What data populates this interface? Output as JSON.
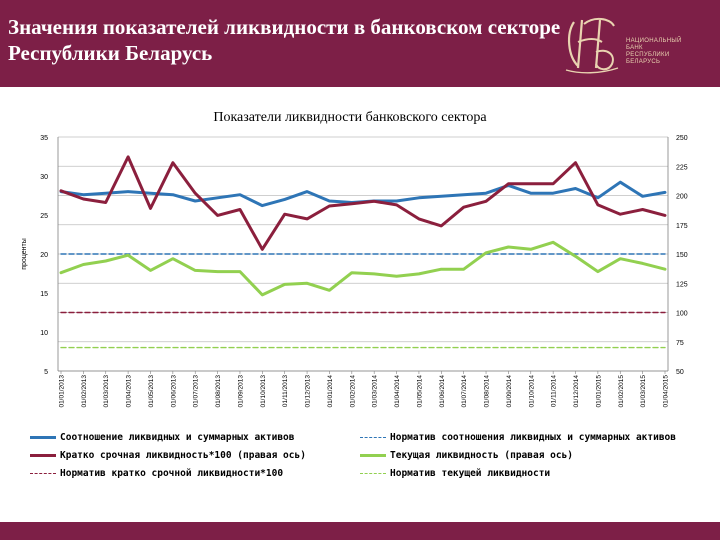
{
  "header": {
    "title": "Значения показателей ликвидности в банковском секторе Республики Беларусь",
    "logo_text": [
      "НАЦИОНАЛЬНЫЙ",
      "БАНК",
      "РЕСПУБЛИКИ",
      "БЕЛАРУСЬ"
    ],
    "background_color": "#7d1f47"
  },
  "chart_data": {
    "type": "line",
    "title": "Показатели ликвидности банковского сектора",
    "ylabel_left": "проценты",
    "y_left": {
      "min": 5,
      "max": 35,
      "ticks": [
        5,
        10,
        15,
        20,
        25,
        30,
        35
      ]
    },
    "y_right": {
      "min": 50,
      "max": 250,
      "ticks": [
        50,
        75,
        100,
        125,
        150,
        175,
        200,
        225,
        250
      ]
    },
    "grid": true,
    "legend_position": "bottom",
    "categories": [
      "01/01/2013",
      "01/02/2013",
      "01/03/2013",
      "01/04/2013",
      "01/05/2013",
      "01/06/2013",
      "01/07/2013",
      "01/08/2013",
      "01/09/2013",
      "01/10/2013",
      "01/11/2013",
      "01/12/2013",
      "01/01/2014",
      "01/02/2014",
      "01/03/2014",
      "01/04/2014",
      "01/05/2014",
      "01/06/2014",
      "01/07/2014",
      "01/08/2014",
      "01/09/2014",
      "01/10/2014",
      "01/11/2014",
      "01/12/2014",
      "01/01/2015",
      "01/02/2015",
      "01/03/2015",
      "01/04/2015"
    ],
    "series": [
      {
        "name": "Соотношение ликвидных и суммарных активов",
        "axis": "left",
        "style": "solid",
        "color": "#2e75b6",
        "values": [
          28.0,
          27.6,
          27.8,
          28.0,
          27.8,
          27.6,
          26.8,
          27.2,
          27.6,
          26.2,
          27.0,
          28.0,
          26.8,
          26.6,
          26.8,
          26.8,
          27.2,
          27.4,
          27.6,
          27.8,
          28.8,
          27.8,
          27.8,
          28.4,
          27.2,
          29.2,
          27.4,
          27.9
        ]
      },
      {
        "name": "Кратко срочная ликвидность*100  (правая ось)",
        "axis": "right",
        "style": "solid",
        "color": "#8b1f3d",
        "values": [
          204,
          197,
          194,
          233,
          189,
          228,
          202,
          183,
          188,
          154,
          184,
          180,
          191,
          193,
          195,
          192,
          180,
          174,
          190,
          195,
          210,
          210,
          210,
          228,
          192,
          184,
          188,
          183
        ]
      },
      {
        "name": "Норматив кратко срочной ликвидности*100",
        "axis": "right",
        "style": "dashed",
        "color": "#8b1f3d",
        "values": [
          100,
          100,
          100,
          100,
          100,
          100,
          100,
          100,
          100,
          100,
          100,
          100,
          100,
          100,
          100,
          100,
          100,
          100,
          100,
          100,
          100,
          100,
          100,
          100,
          100,
          100,
          100,
          100
        ]
      },
      {
        "name": "Норматив соотношения ликвидных и суммарных активов",
        "axis": "left",
        "style": "dashed",
        "color": "#2e75b6",
        "values": [
          20,
          20,
          20,
          20,
          20,
          20,
          20,
          20,
          20,
          20,
          20,
          20,
          20,
          20,
          20,
          20,
          20,
          20,
          20,
          20,
          20,
          20,
          20,
          20,
          20,
          20,
          20,
          20
        ]
      },
      {
        "name": "Текущая ликвидность  (правая ось)",
        "axis": "right",
        "style": "solid",
        "color": "#92d050",
        "values": [
          134,
          141,
          144,
          149,
          136,
          146,
          136,
          135,
          135,
          115,
          124,
          125,
          119,
          134,
          133,
          131,
          133,
          137,
          137,
          151,
          156,
          154,
          160,
          148,
          135,
          146,
          142,
          137
        ]
      },
      {
        "name": "Норматив текущей ликвидности",
        "axis": "right",
        "style": "dashed",
        "color": "#92d050",
        "values": [
          70,
          70,
          70,
          70,
          70,
          70,
          70,
          70,
          70,
          70,
          70,
          70,
          70,
          70,
          70,
          70,
          70,
          70,
          70,
          70,
          70,
          70,
          70,
          70,
          70,
          70,
          70,
          70
        ]
      }
    ]
  }
}
